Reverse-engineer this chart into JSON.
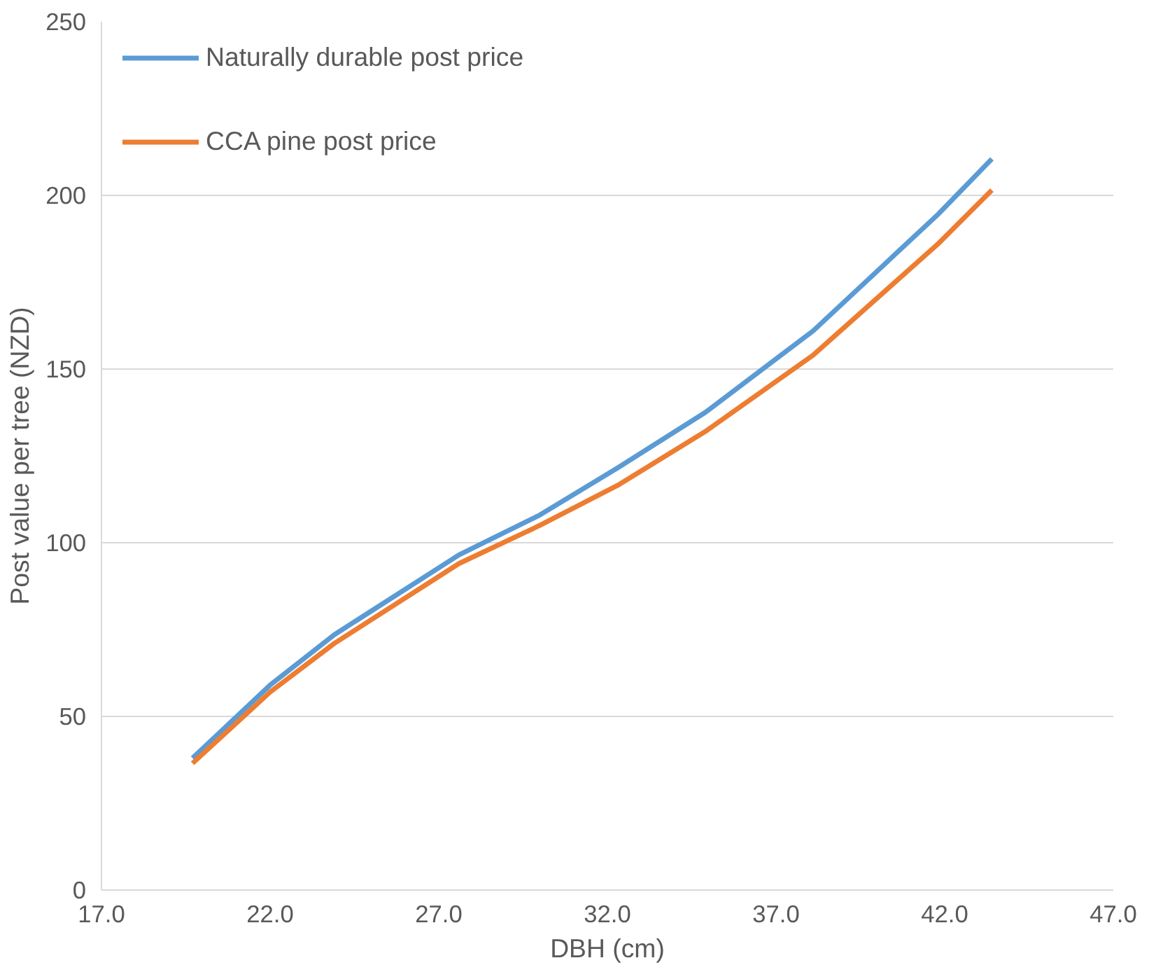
{
  "chart_data": {
    "type": "line",
    "xlabel": "DBH (cm)",
    "ylabel": "Post value per tree (NZD)",
    "xlim": [
      17.0,
      47.0
    ],
    "xticks": [
      {
        "value": 17,
        "label": "17.0"
      },
      {
        "value": 22,
        "label": "22.0"
      },
      {
        "value": 27,
        "label": "27.0"
      },
      {
        "value": 32,
        "label": "32.0"
      },
      {
        "value": 37,
        "label": "37.0"
      },
      {
        "value": 42,
        "label": "42.0"
      },
      {
        "value": 47,
        "label": "47.0"
      }
    ],
    "ylim": [
      0,
      250
    ],
    "yticks": [
      0,
      50,
      100,
      150,
      200,
      250
    ],
    "grid": "y",
    "legend": "top left",
    "marker": "none",
    "line_style": "solid",
    "x": [
      19.7,
      22.0,
      23.9,
      27.6,
      30.0,
      32.3,
      34.9,
      38.1,
      41.8,
      43.4
    ],
    "series": [
      {
        "name": "Naturally durable post price",
        "color": "#5b9bd5",
        "values": [
          38,
          59,
          73.5,
          96.5,
          108,
          121.5,
          137.5,
          161,
          194.5,
          210.5
        ]
      },
      {
        "name": "CCA pine post price",
        "color": "#ed7d31",
        "values": [
          36.5,
          57,
          71,
          94,
          105,
          116.5,
          132,
          154,
          186,
          201.5
        ]
      }
    ]
  }
}
